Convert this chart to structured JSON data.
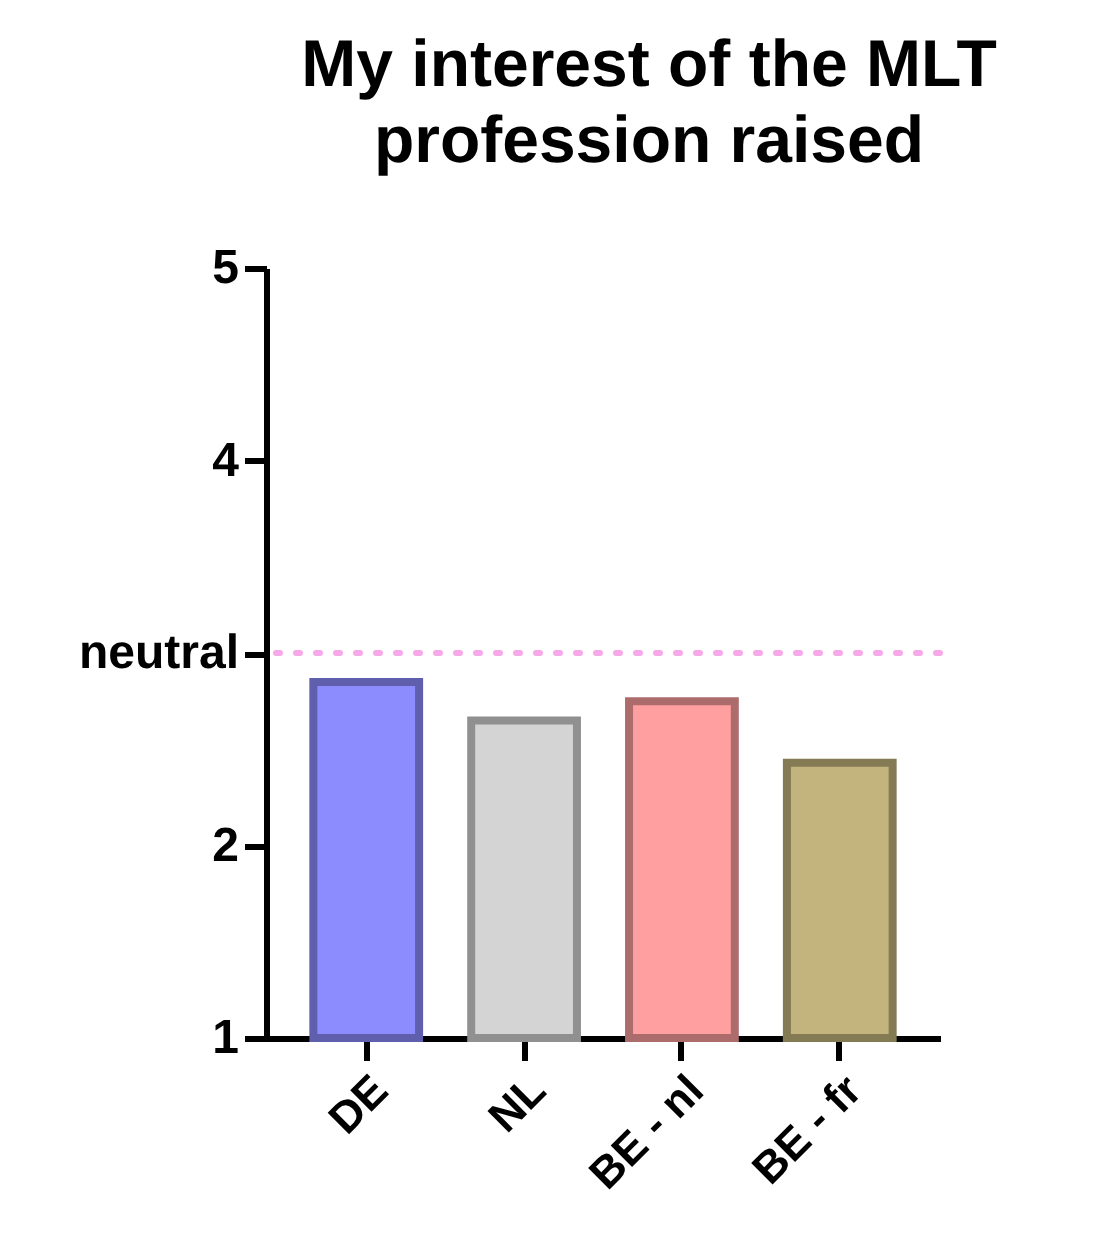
{
  "chart_data": {
    "type": "bar",
    "title": "My interest of the MLT profession raised",
    "categories": [
      "DE",
      "NL",
      "BE - nl",
      "BE - fr"
    ],
    "values": [
      2.85,
      2.65,
      2.75,
      2.43
    ],
    "colors": [
      "#8c8cff",
      "#d4d4d4",
      "#ff9f9f",
      "#c2b47c"
    ],
    "ylim": [
      1,
      5
    ],
    "yticks": [
      1,
      2,
      {
        "value": 3,
        "label": "neutral"
      },
      4,
      5
    ],
    "ref_lines": [
      {
        "axis": "y",
        "value": 3,
        "color": "#f7a8e8",
        "line_style": "dotted"
      }
    ],
    "grid": false
  }
}
